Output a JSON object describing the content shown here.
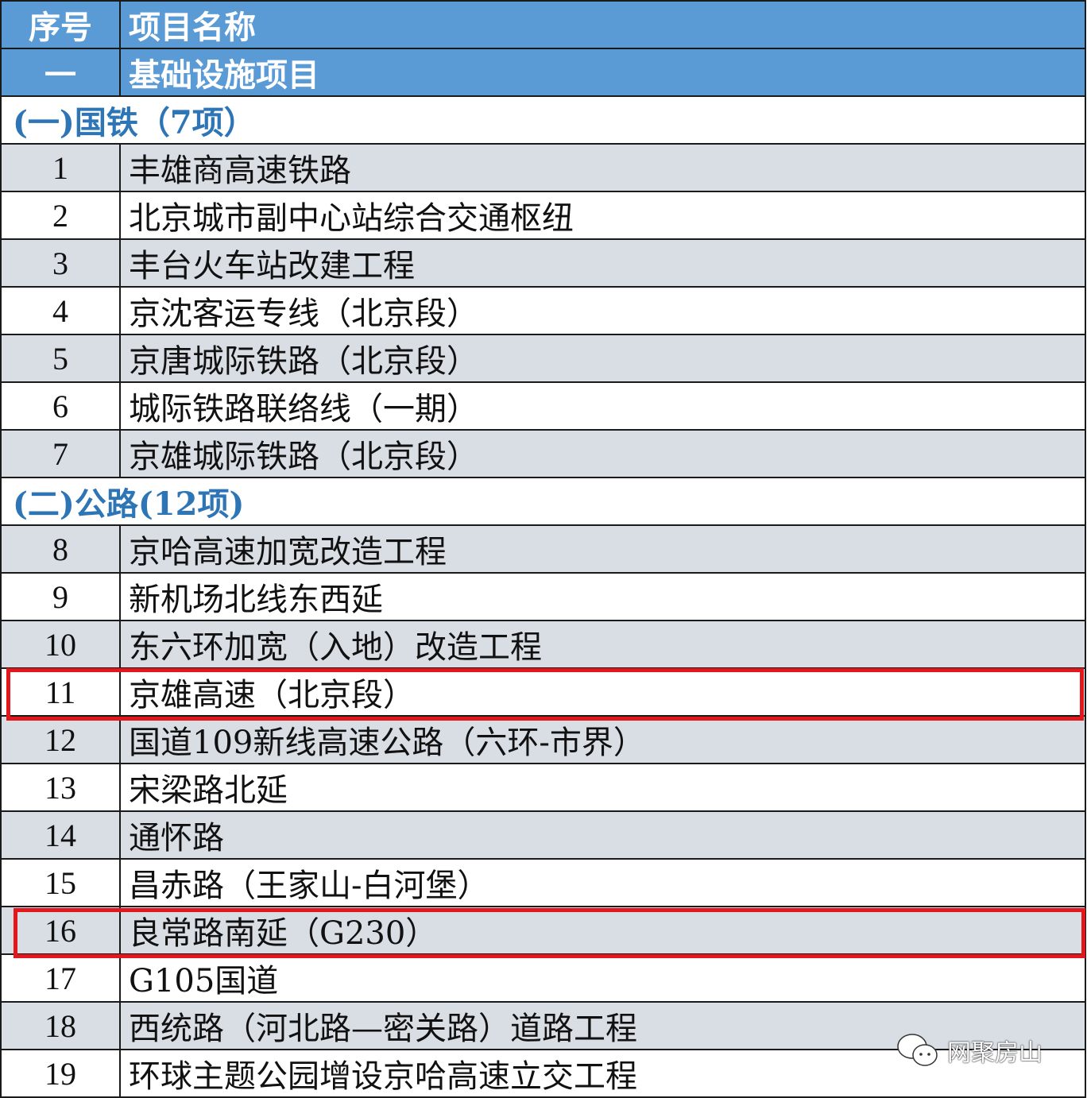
{
  "header": {
    "col_index": "序号",
    "col_name": "项目名称"
  },
  "category": {
    "index": "一",
    "name": "基础设施项目"
  },
  "sections": [
    {
      "title": "(一)国铁（7项）",
      "rows": [
        {
          "no": "1",
          "name": "丰雄商高速铁路"
        },
        {
          "no": "2",
          "name": "北京城市副中心站综合交通枢纽"
        },
        {
          "no": "3",
          "name": "丰台火车站改建工程"
        },
        {
          "no": "4",
          "name": "京沈客运专线（北京段）"
        },
        {
          "no": "5",
          "name": "京唐城际铁路（北京段）"
        },
        {
          "no": "6",
          "name": "城际铁路联络线（一期）"
        },
        {
          "no": "7",
          "name": "京雄城际铁路（北京段）"
        }
      ]
    },
    {
      "title": "(二)公路(12项)",
      "rows": [
        {
          "no": "8",
          "name": "京哈高速加宽改造工程"
        },
        {
          "no": "9",
          "name": "新机场北线东西延"
        },
        {
          "no": "10",
          "name": "东六环加宽（入地）改造工程"
        },
        {
          "no": "11",
          "name": "京雄高速（北京段）",
          "highlighted": true
        },
        {
          "no": "12",
          "name": "国道109新线高速公路（六环-市界）"
        },
        {
          "no": "13",
          "name": "宋梁路北延"
        },
        {
          "no": "14",
          "name": "通怀路"
        },
        {
          "no": "15",
          "name": "昌赤路（王家山-白河堡）"
        },
        {
          "no": "16",
          "name": "良常路南延（G230）",
          "highlighted": true
        },
        {
          "no": "17",
          "name": "G105国道"
        },
        {
          "no": "18",
          "name": "西统路（河北路—密关路）道路工程"
        },
        {
          "no": "19",
          "name": "环球主题公园增设京哈高速立交工程"
        }
      ]
    }
  ],
  "colors": {
    "header_bg": "#5b9bd5",
    "section_text": "#2e75b6",
    "stripe": "#d9dee5",
    "highlight": "#e3161b"
  },
  "watermark": {
    "icon": "wechat-icon",
    "text": "网聚房山"
  }
}
